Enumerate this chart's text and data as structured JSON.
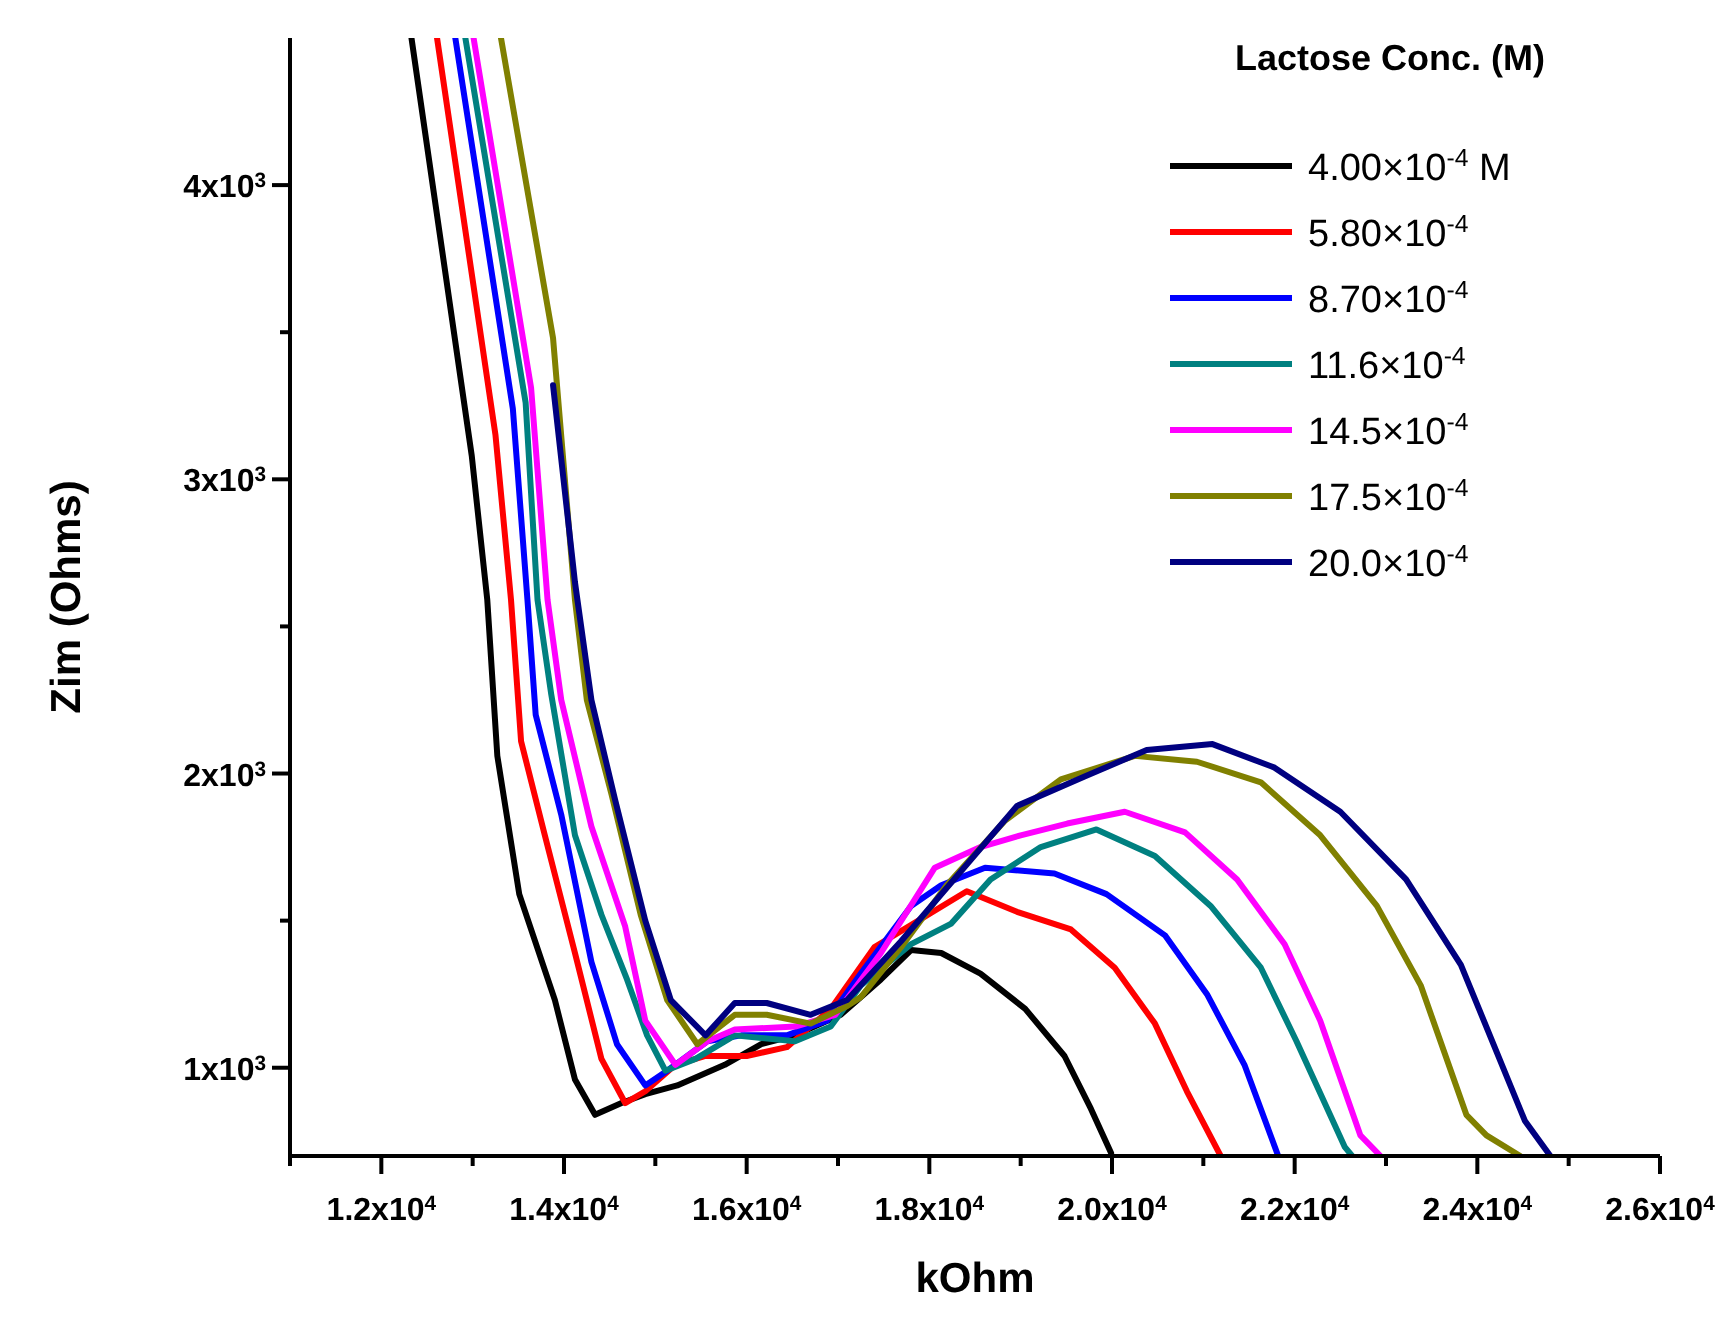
{
  "chart_data": {
    "type": "line",
    "xlabel": "kOhm",
    "ylabel": "Zim (Ohms)",
    "legend_title": "Lactose Conc. (M)",
    "legend": "top right",
    "grid": false,
    "marker": "none",
    "line_style": "solid",
    "xlim": [
      11000,
      26000
    ],
    "xticks": [
      {
        "value": 11000,
        "label": null
      },
      {
        "value": 12000,
        "label": "1.2x10$^{4}$"
      },
      {
        "value": 13000,
        "label": null
      },
      {
        "value": 14000,
        "label": "1.4x10$^{4}$"
      },
      {
        "value": 15000,
        "label": null
      },
      {
        "value": 16000,
        "label": "1.6x10$^{4}$"
      },
      {
        "value": 17000,
        "label": null
      },
      {
        "value": 18000,
        "label": "1.8x10$^{4}$"
      },
      {
        "value": 19000,
        "label": null
      },
      {
        "value": 20000,
        "label": "2.0x10$^{4}$"
      },
      {
        "value": 21000,
        "label": null
      },
      {
        "value": 22000,
        "label": "2.2x10$^{4}$"
      },
      {
        "value": 23000,
        "label": null
      },
      {
        "value": 24000,
        "label": "2.4x10$^{4}$"
      },
      {
        "value": 25000,
        "label": null
      },
      {
        "value": 26000,
        "label": "2.6x10$^{4}$"
      }
    ],
    "ylim": [
      700,
      4500
    ],
    "yticks": [
      {
        "value": 1000,
        "label": "1x10$^{3}$"
      },
      {
        "value": 1500,
        "label": null
      },
      {
        "value": 2000,
        "label": "2x10$^{3}$"
      },
      {
        "value": 2500,
        "label": null
      },
      {
        "value": 3000,
        "label": "3x10$^{3}$"
      },
      {
        "value": 3500,
        "label": null
      },
      {
        "value": 4000,
        "label": "4x10$^{3}$"
      }
    ],
    "series": [
      {
        "name": "4.00×10$^{-4}$ M",
        "color": "#000000",
        "x": [
          12330,
          12990,
          13160,
          13270,
          13510,
          13900,
          14120,
          14340,
          14630,
          14890,
          15240,
          15760,
          16160,
          16530,
          17030,
          17470,
          17800,
          18130,
          18560,
          19050,
          19480,
          19770,
          19990
        ],
        "values": [
          4500,
          3080,
          2590,
          2060,
          1590,
          1230,
          960,
          840,
          880,
          910,
          940,
          1010,
          1080,
          1110,
          1180,
          1300,
          1400,
          1390,
          1320,
          1200,
          1040,
          860,
          710
        ]
      },
      {
        "name": "5.80×10$^{-4}$",
        "color": "#ff0000",
        "x": [
          12610,
          13250,
          13420,
          13530,
          13790,
          14120,
          14410,
          14670,
          14890,
          15220,
          15550,
          16000,
          16440,
          16920,
          17400,
          18410,
          18960,
          19550,
          20030,
          20470,
          20820,
          21190
        ],
        "values": [
          4500,
          3150,
          2590,
          2110,
          1790,
          1390,
          1030,
          880,
          920,
          1010,
          1040,
          1040,
          1070,
          1200,
          1410,
          1600,
          1530,
          1470,
          1340,
          1150,
          920,
          700
        ]
      },
      {
        "name": "8.70×10$^{-4}$",
        "color": "#0000ff",
        "x": [
          12810,
          13440,
          13600,
          13690,
          13970,
          14300,
          14580,
          14890,
          15130,
          15570,
          15940,
          16440,
          16880,
          17250,
          17800,
          18130,
          18610,
          19370,
          19940,
          20580,
          21040,
          21450,
          21820
        ],
        "values": [
          4500,
          3240,
          2590,
          2200,
          1860,
          1360,
          1080,
          940,
          990,
          1090,
          1110,
          1110,
          1160,
          1320,
          1550,
          1620,
          1680,
          1660,
          1590,
          1450,
          1250,
          1010,
          700
        ]
      },
      {
        "name": "11.6×10$^{-4}$",
        "color": "#008080",
        "x": [
          12920,
          13580,
          13710,
          13860,
          14120,
          14410,
          14690,
          14910,
          15110,
          15440,
          15870,
          16530,
          16920,
          17250,
          17800,
          18240,
          18670,
          19220,
          19830,
          20470,
          21080,
          21630,
          22020,
          22550,
          22630
        ],
        "values": [
          4500,
          3260,
          2590,
          2270,
          1790,
          1520,
          1300,
          1110,
          990,
          1030,
          1110,
          1090,
          1140,
          1280,
          1420,
          1490,
          1640,
          1750,
          1810,
          1720,
          1550,
          1340,
          1090,
          730,
          700
        ]
      },
      {
        "name": "14.5×10$^{-4}$",
        "color": "#ff00ff",
        "x": [
          13010,
          13640,
          13820,
          13970,
          14300,
          14670,
          14890,
          15220,
          15570,
          15870,
          16530,
          16970,
          17470,
          18060,
          18560,
          19000,
          19510,
          20140,
          20800,
          21370,
          21890,
          22280,
          22720,
          22940
        ],
        "values": [
          4500,
          3310,
          2590,
          2250,
          1820,
          1480,
          1160,
          1010,
          1090,
          1130,
          1140,
          1180,
          1390,
          1680,
          1750,
          1790,
          1830,
          1870,
          1800,
          1640,
          1420,
          1160,
          770,
          700
        ]
      },
      {
        "name": "17.5×10$^{-4}$",
        "color": "#808000",
        "x": [
          13310,
          13880,
          14120,
          14250,
          14520,
          14840,
          15130,
          15460,
          15870,
          16220,
          16700,
          17100,
          17250,
          17690,
          18190,
          18830,
          19440,
          20250,
          20930,
          21630,
          22280,
          22900,
          23380,
          23880,
          24100,
          24470
        ],
        "values": [
          4500,
          3480,
          2590,
          2250,
          1930,
          1520,
          1230,
          1080,
          1180,
          1180,
          1150,
          1210,
          1240,
          1410,
          1620,
          1840,
          1980,
          2060,
          2040,
          1970,
          1790,
          1550,
          1280,
          840,
          770,
          700
        ]
      },
      {
        "name": "20.0×10$^{-4}$",
        "color": "#000080",
        "x": [
          13880,
          14120,
          14300,
          14560,
          14890,
          15170,
          15550,
          15870,
          16220,
          16700,
          17100,
          17690,
          18960,
          19700,
          20380,
          21100,
          21780,
          22500,
          23220,
          23820,
          24520,
          24800
        ],
        "values": [
          3320,
          2650,
          2250,
          1910,
          1500,
          1230,
          1110,
          1220,
          1220,
          1180,
          1230,
          1430,
          1890,
          1990,
          2080,
          2100,
          2020,
          1870,
          1640,
          1350,
          820,
          700
        ]
      }
    ]
  }
}
